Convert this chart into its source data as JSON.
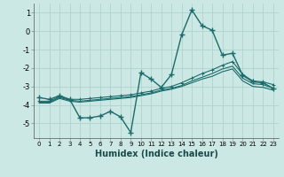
{
  "xlabel": "Humidex (Indice chaleur)",
  "background_color": "#cce8e4",
  "grid_color": "#aacfca",
  "line_color": "#1a6b6b",
  "x_values": [
    0,
    1,
    2,
    3,
    4,
    5,
    6,
    7,
    8,
    9,
    10,
    11,
    12,
    13,
    14,
    15,
    16,
    17,
    18,
    19,
    20,
    21,
    22,
    23
  ],
  "line1_y": [
    -3.6,
    -3.7,
    -3.5,
    -3.7,
    -4.7,
    -4.7,
    -4.6,
    -4.35,
    -4.65,
    -5.5,
    -2.25,
    -2.6,
    -3.05,
    -2.35,
    -0.2,
    1.15,
    0.3,
    0.05,
    -1.3,
    -1.2,
    -2.4,
    -2.75,
    -2.8,
    -3.1
  ],
  "line2_y": [
    -3.8,
    -3.8,
    -3.55,
    -3.7,
    -3.7,
    -3.65,
    -3.6,
    -3.55,
    -3.5,
    -3.45,
    -3.35,
    -3.25,
    -3.1,
    -3.0,
    -2.8,
    -2.55,
    -2.3,
    -2.1,
    -1.85,
    -1.65,
    -2.35,
    -2.7,
    -2.75,
    -2.9
  ],
  "line3_y": [
    -3.85,
    -3.85,
    -3.6,
    -3.75,
    -3.8,
    -3.75,
    -3.7,
    -3.65,
    -3.6,
    -3.55,
    -3.45,
    -3.35,
    -3.2,
    -3.1,
    -2.95,
    -2.7,
    -2.5,
    -2.3,
    -2.05,
    -1.9,
    -2.55,
    -2.85,
    -2.9,
    -3.1
  ],
  "line4_y": [
    -3.9,
    -3.9,
    -3.65,
    -3.8,
    -3.85,
    -3.8,
    -3.75,
    -3.7,
    -3.65,
    -3.6,
    -3.5,
    -3.4,
    -3.25,
    -3.15,
    -3.0,
    -2.8,
    -2.6,
    -2.45,
    -2.2,
    -2.05,
    -2.7,
    -3.0,
    -3.05,
    -3.2
  ],
  "ylim": [
    -5.8,
    1.5
  ],
  "yticks": [
    1,
    0,
    -1,
    -2,
    -3,
    -4,
    -5
  ]
}
